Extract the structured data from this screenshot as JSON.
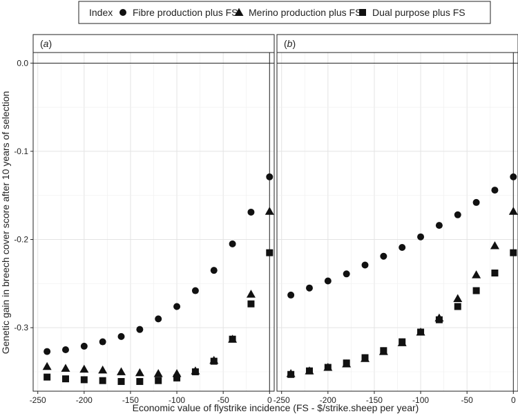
{
  "chart_data": {
    "type": "scatter",
    "legend": {
      "title": "Index",
      "placement": "top",
      "entries": [
        {
          "name": "Fibre production plus FS",
          "marker": "circle"
        },
        {
          "name": "Merino production plus FS",
          "marker": "triangle"
        },
        {
          "name": "Dual purpose plus FS",
          "marker": "square"
        }
      ]
    },
    "xlabel": "Economic value of flystrike incidence (FS - $/strike.sheep per year)",
    "ylabel": "Genetic gain in breech cover score after 10 years of selection",
    "xlim": [
      -255,
      5
    ],
    "ylim": [
      -0.372,
      0.012
    ],
    "xticks": [
      -250,
      -200,
      -150,
      -100,
      -50,
      0
    ],
    "yticks": [
      0.0,
      -0.1,
      -0.2,
      -0.3
    ],
    "ytick_labels": [
      "0.0",
      "-0.1",
      "-0.2",
      "-0.3"
    ],
    "hline": 0.0,
    "vline": 0,
    "grid": true,
    "x": [
      -240,
      -220,
      -200,
      -180,
      -160,
      -140,
      -120,
      -100,
      -80,
      -60,
      -40,
      -20,
      0
    ],
    "panels": [
      {
        "label": "a",
        "series": [
          {
            "name": "Fibre production plus FS",
            "values": [
              -0.327,
              -0.325,
              -0.321,
              -0.316,
              -0.31,
              -0.302,
              -0.29,
              -0.276,
              -0.258,
              -0.235,
              -0.205,
              -0.169,
              -0.129
            ]
          },
          {
            "name": "Merino production plus FS",
            "values": [
              -0.344,
              -0.346,
              -0.347,
              -0.348,
              -0.35,
              -0.351,
              -0.352,
              -0.352,
              -0.349,
              -0.337,
              -0.313,
              -0.262,
              -0.168
            ]
          },
          {
            "name": "Dual purpose plus FS",
            "values": [
              -0.356,
              -0.358,
              -0.359,
              -0.36,
              -0.361,
              -0.361,
              -0.36,
              -0.357,
              -0.35,
              -0.338,
              -0.313,
              -0.273,
              -0.215
            ]
          }
        ]
      },
      {
        "label": "b",
        "series": [
          {
            "name": "Fibre production plus FS",
            "values": [
              -0.263,
              -0.255,
              -0.247,
              -0.239,
              -0.229,
              -0.219,
              -0.209,
              -0.197,
              -0.184,
              -0.172,
              -0.158,
              -0.144,
              -0.129
            ]
          },
          {
            "name": "Merino production plus FS",
            "values": [
              -0.352,
              -0.349,
              -0.345,
              -0.341,
              -0.335,
              -0.327,
              -0.317,
              -0.305,
              -0.289,
              -0.267,
              -0.24,
              -0.207,
              -0.168
            ]
          },
          {
            "name": "Dual purpose plus FS",
            "values": [
              -0.353,
              -0.349,
              -0.345,
              -0.34,
              -0.334,
              -0.326,
              -0.316,
              -0.305,
              -0.291,
              -0.276,
              -0.258,
              -0.238,
              -0.215
            ]
          }
        ]
      }
    ]
  }
}
